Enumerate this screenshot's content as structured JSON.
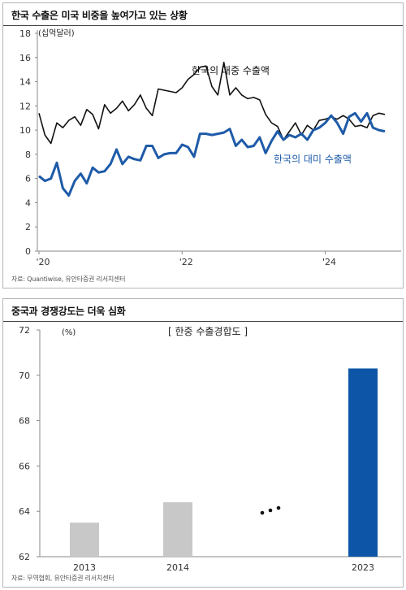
{
  "panel1": {
    "title": "한국 수출은 미국 비중을 높여가고 있는 상황",
    "source": "자료: Quantiwise, 유안타증권 리서치센터"
  },
  "panel2": {
    "title": "중국과 경쟁강도는 더욱 심화",
    "source": "자료: 무역협회, 유안타증권 리서치센터"
  },
  "chart_data": [
    {
      "type": "line",
      "unit_label": "(십억달러)",
      "x_tick_labels": [
        "'20",
        "'22",
        "'24"
      ],
      "ylim": [
        0,
        18
      ],
      "y_ticks": [
        0,
        2,
        4,
        6,
        8,
        10,
        12,
        14,
        16,
        18
      ],
      "grid": false,
      "x_start": "2020-01",
      "x_end": "2024-08",
      "series": [
        {
          "name": "한국의 대중 수출액",
          "color": "#111111",
          "values": [
            11.4,
            9.6,
            8.9,
            10.6,
            10.2,
            10.8,
            11.1,
            10.4,
            11.7,
            11.3,
            10.1,
            12.1,
            11.4,
            11.8,
            12.4,
            11.6,
            12.1,
            12.9,
            11.8,
            11.2,
            13.4,
            13.3,
            13.2,
            13.1,
            13.5,
            14.2,
            14.6,
            15.2,
            15.3,
            13.6,
            12.9,
            15.6,
            12.9,
            13.5,
            12.9,
            12.6,
            12.7,
            12.5,
            11.3,
            10.6,
            10.3,
            9.2,
            9.9,
            10.6,
            9.6,
            10.4,
            10.0,
            10.8,
            10.9,
            11.1,
            10.9,
            11.2,
            10.9,
            10.3,
            10.4,
            10.2,
            11.2,
            11.4,
            11.3
          ]
        },
        {
          "name": "한국의 대미 수출액",
          "color": "#1e5ba8",
          "values": [
            6.2,
            5.8,
            6.0,
            7.3,
            5.2,
            4.6,
            5.8,
            6.4,
            5.6,
            6.9,
            6.5,
            6.6,
            7.2,
            8.4,
            7.2,
            7.8,
            7.6,
            7.5,
            8.7,
            8.7,
            7.7,
            8.0,
            8.1,
            8.1,
            8.8,
            8.6,
            7.8,
            9.7,
            9.7,
            9.6,
            9.7,
            9.8,
            10.1,
            8.7,
            9.2,
            8.6,
            8.7,
            9.4,
            8.1,
            9.1,
            9.9,
            9.2,
            9.6,
            9.4,
            9.7,
            9.2,
            10.0,
            10.2,
            10.6,
            11.2,
            10.6,
            9.7,
            11.1,
            11.4,
            10.7,
            11.4,
            10.2,
            10.0,
            9.9
          ]
        }
      ]
    },
    {
      "type": "bar",
      "title": "[ 한중 수출경합도 ]",
      "unit_label": "(%)",
      "categories": [
        "2013",
        "2014",
        "2023"
      ],
      "values": [
        63.5,
        64.4,
        70.3
      ],
      "colors": [
        "#c8c8c8",
        "#c8c8c8",
        "#0d55a6"
      ],
      "ylim": [
        62,
        72
      ],
      "y_ticks": [
        62,
        64,
        66,
        68,
        70,
        72
      ],
      "grid": false,
      "gap_marker": "…"
    }
  ]
}
